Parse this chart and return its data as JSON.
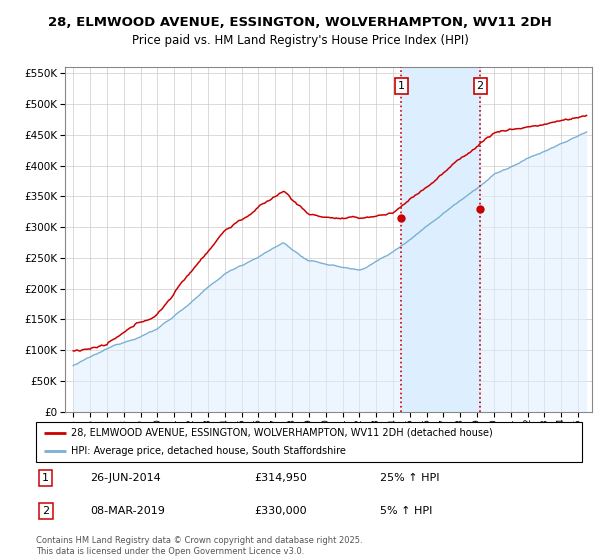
{
  "title1": "28, ELMWOOD AVENUE, ESSINGTON, WOLVERHAMPTON, WV11 2DH",
  "title2": "Price paid vs. HM Land Registry's House Price Index (HPI)",
  "legend_line1": "28, ELMWOOD AVENUE, ESSINGTON, WOLVERHAMPTON, WV11 2DH (detached house)",
  "legend_line2": "HPI: Average price, detached house, South Staffordshire",
  "footnote": "Contains HM Land Registry data © Crown copyright and database right 2025.\nThis data is licensed under the Open Government Licence v3.0.",
  "annotation1_date": "26-JUN-2014",
  "annotation1_price": "£314,950",
  "annotation1_hpi": "25% ↑ HPI",
  "annotation2_date": "08-MAR-2019",
  "annotation2_price": "£330,000",
  "annotation2_hpi": "5% ↑ HPI",
  "sale1_x": 2014.49,
  "sale1_y": 314950,
  "sale2_x": 2019.18,
  "sale2_y": 330000,
  "vline1_x": 2014.49,
  "vline2_x": 2019.18,
  "ylim": [
    0,
    560000
  ],
  "xlim": [
    1994.5,
    2025.8
  ],
  "hpi_fill_color": "#ddeeff",
  "hpi_line_color": "#7ab0d4",
  "sale_color": "#cc0000",
  "vline_color": "#cc0000",
  "vline_fill_color": "#ddeeff",
  "background_color": "#ffffff",
  "grid_color": "#cccccc"
}
